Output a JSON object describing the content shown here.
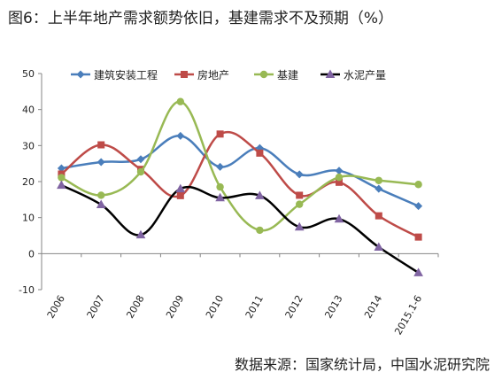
{
  "title": "图6：上半年地产需求额势依旧，基建需求不及预期（%）",
  "source": "数据来源：国家统计局，中国水泥研究院",
  "chart_data": {
    "type": "line",
    "categories": [
      "2006",
      "2007",
      "2008",
      "2009",
      "2010",
      "2011",
      "2012",
      "2013",
      "2014",
      "2015.1-6"
    ],
    "ylim": [
      -10,
      50
    ],
    "yticks": [
      -10,
      0,
      10,
      20,
      30,
      40,
      50
    ],
    "legend_position": "top",
    "grid": false,
    "smooth": true,
    "series": [
      {
        "name": "建筑安装工程",
        "color": "#4a7ebb",
        "marker": "diamond",
        "values": [
          23.7,
          25.4,
          26.2,
          32.7,
          24.1,
          29.3,
          22.0,
          23.0,
          18.0,
          13.2
        ]
      },
      {
        "name": "房地产",
        "color": "#be4b48",
        "marker": "square",
        "values": [
          22.1,
          30.2,
          23.4,
          16.1,
          33.2,
          27.9,
          16.2,
          19.8,
          10.5,
          4.6
        ]
      },
      {
        "name": "基建",
        "color": "#98b954",
        "marker": "circle",
        "values": [
          21.1,
          16.2,
          22.7,
          42.2,
          18.5,
          6.5,
          13.7,
          21.2,
          20.3,
          19.2
        ]
      },
      {
        "name": "水泥产量",
        "color": "#000000",
        "marker": "triangle",
        "values": [
          19.0,
          13.6,
          5.2,
          18.0,
          15.5,
          16.1,
          7.4,
          9.6,
          1.8,
          -5.3
        ]
      }
    ]
  }
}
